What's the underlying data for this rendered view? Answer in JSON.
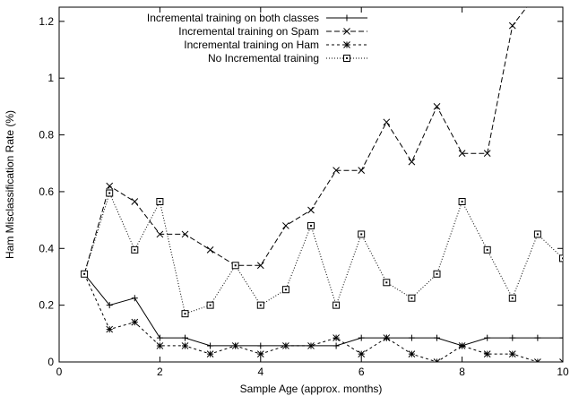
{
  "chart_data": {
    "type": "line",
    "title": "",
    "xlabel": "Sample Age (approx. months)",
    "ylabel": "Ham Misclassification Rate (%)",
    "xlim": [
      0,
      10
    ],
    "ylim": [
      0,
      1.25
    ],
    "xticks": [
      0,
      2,
      4,
      6,
      8,
      10
    ],
    "yticks": [
      0,
      0.2,
      0.4,
      0.6,
      0.8,
      1,
      1.2
    ],
    "grid": false,
    "legend_position": "top-center",
    "x": [
      0.5,
      1,
      1.5,
      2,
      2.5,
      3,
      3.5,
      4,
      4.5,
      5,
      5.5,
      6,
      6.5,
      7,
      7.5,
      8,
      8.5,
      9,
      9.5,
      10
    ],
    "series": [
      {
        "name": "Incremental training on both classes",
        "marker": "plus",
        "dash": "solid",
        "values": [
          0.31,
          0.2,
          0.225,
          0.085,
          0.085,
          0.057,
          0.057,
          0.057,
          0.057,
          0.057,
          0.057,
          0.085,
          0.085,
          0.085,
          0.085,
          0.057,
          0.085,
          0.085,
          0.085,
          0.085
        ]
      },
      {
        "name": "Incremental training on Spam",
        "marker": "x",
        "dash": "dashed",
        "values": [
          0.31,
          0.62,
          0.565,
          0.45,
          0.45,
          0.395,
          0.34,
          0.34,
          0.48,
          0.535,
          0.675,
          0.675,
          0.845,
          0.705,
          0.9,
          0.735,
          0.735,
          1.185,
          1.3,
          1.3
        ]
      },
      {
        "name": "Incremental training on Ham",
        "marker": "star",
        "dash": "short-dashed",
        "values": [
          0.31,
          0.115,
          0.14,
          0.057,
          0.057,
          0.028,
          0.057,
          0.028,
          0.057,
          0.057,
          0.085,
          0.028,
          0.085,
          0.028,
          0.0,
          0.057,
          0.028,
          0.028,
          0.0,
          0.0
        ]
      },
      {
        "name": "No Incremental training",
        "marker": "square",
        "dash": "dotted",
        "values": [
          0.31,
          0.595,
          0.395,
          0.565,
          0.17,
          0.2,
          0.34,
          0.2,
          0.255,
          0.48,
          0.2,
          0.45,
          0.28,
          0.225,
          0.31,
          0.565,
          0.395,
          0.225,
          0.45,
          0.365
        ]
      }
    ]
  }
}
